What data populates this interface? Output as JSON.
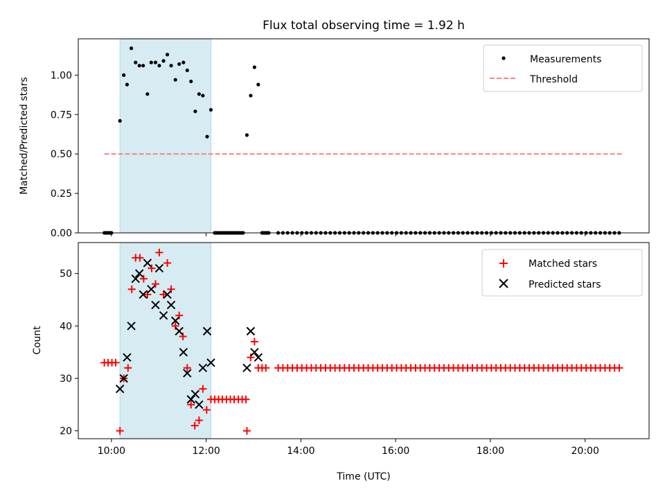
{
  "chart_data": {
    "type": "scatter",
    "title": "Flux total observing time = 1.92 h",
    "xlabel": "Time (UTC)",
    "x_unit": "hours",
    "xlim": [
      9.3,
      21.35
    ],
    "xticks": [
      10,
      12,
      14,
      16,
      18,
      20
    ],
    "xtick_labels": [
      "10:00",
      "12:00",
      "14:00",
      "16:00",
      "18:00",
      "20:00"
    ],
    "shaded_interval": {
      "start": 10.18,
      "end": 12.1,
      "color": "#add8e6"
    },
    "top": {
      "ylabel": "Matched/Predicted stars",
      "ylim": [
        0,
        1.23
      ],
      "yticks": [
        0,
        0.25,
        0.5,
        0.75,
        1.0
      ],
      "ytick_labels": [
        "0.00",
        "0.25",
        "0.50",
        "0.75",
        "1.00"
      ],
      "threshold": {
        "name": "Threshold",
        "value": 0.5,
        "x_start": 9.85,
        "x_end": 20.8,
        "color": "#ff8080"
      },
      "measurements": {
        "name": "Measurements",
        "color": "#000000",
        "points": [
          [
            10.18,
            0.71
          ],
          [
            10.26,
            1.0
          ],
          [
            10.33,
            0.94
          ],
          [
            10.42,
            1.17
          ],
          [
            10.51,
            1.08
          ],
          [
            10.59,
            1.06
          ],
          [
            10.67,
            1.06
          ],
          [
            10.76,
            0.88
          ],
          [
            10.84,
            1.08
          ],
          [
            10.93,
            1.08
          ],
          [
            11.01,
            1.06
          ],
          [
            11.1,
            1.09
          ],
          [
            11.18,
            1.13
          ],
          [
            11.26,
            1.06
          ],
          [
            11.35,
            0.97
          ],
          [
            11.43,
            1.07
          ],
          [
            11.52,
            1.08
          ],
          [
            11.6,
            1.03
          ],
          [
            11.68,
            0.96
          ],
          [
            11.77,
            0.77
          ],
          [
            11.85,
            0.88
          ],
          [
            11.93,
            0.87
          ],
          [
            12.02,
            0.61
          ],
          [
            12.1,
            0.78
          ],
          [
            12.86,
            0.62
          ],
          [
            12.94,
            0.87
          ],
          [
            13.02,
            1.05
          ],
          [
            13.1,
            0.94
          ]
        ]
      },
      "zero_segments": [
        [
          9.85,
          10.0,
          0.025
        ],
        [
          12.18,
          12.78,
          0.03
        ],
        [
          13.18,
          13.32,
          0.035
        ],
        [
          13.52,
          20.8,
          0.1
        ]
      ]
    },
    "bottom": {
      "ylabel": "Count",
      "ylim": [
        18.5,
        55.9
      ],
      "yticks": [
        20,
        30,
        40,
        50
      ],
      "ytick_labels": [
        "20",
        "30",
        "40",
        "50"
      ],
      "matched": {
        "name": "Matched stars",
        "color": "#ff0000",
        "points": [
          [
            9.85,
            33
          ],
          [
            9.93,
            33
          ],
          [
            10.01,
            33
          ],
          [
            10.09,
            33
          ],
          [
            10.18,
            20
          ],
          [
            10.26,
            30
          ],
          [
            10.35,
            32
          ],
          [
            10.43,
            47
          ],
          [
            10.51,
            53
          ],
          [
            10.6,
            53
          ],
          [
            10.68,
            49
          ],
          [
            10.76,
            46
          ],
          [
            10.85,
            51
          ],
          [
            10.93,
            48
          ],
          [
            11.01,
            54
          ],
          [
            11.1,
            46
          ],
          [
            11.18,
            52
          ],
          [
            11.26,
            47
          ],
          [
            11.35,
            40
          ],
          [
            11.43,
            42
          ],
          [
            11.51,
            38
          ],
          [
            11.6,
            32
          ],
          [
            11.68,
            25
          ],
          [
            11.76,
            21
          ],
          [
            11.85,
            22
          ],
          [
            11.93,
            28
          ],
          [
            12.01,
            24
          ],
          [
            12.1,
            26
          ],
          [
            12.18,
            26
          ],
          [
            12.26,
            26
          ],
          [
            12.34,
            26
          ],
          [
            12.43,
            26
          ],
          [
            12.51,
            26
          ],
          [
            12.59,
            26
          ],
          [
            12.68,
            26
          ],
          [
            12.76,
            26
          ],
          [
            12.84,
            26
          ],
          [
            12.86,
            20
          ],
          [
            12.94,
            34
          ],
          [
            13.02,
            37
          ],
          [
            13.1,
            32
          ],
          [
            13.18,
            32
          ],
          [
            13.26,
            32
          ]
        ],
        "constant_series": {
          "value": 32,
          "x_start": 13.52,
          "x_end": 20.8,
          "step": 0.1
        }
      },
      "predicted": {
        "name": "Predicted stars",
        "color": "#000000",
        "points": [
          [
            10.18,
            28
          ],
          [
            10.26,
            30
          ],
          [
            10.33,
            34
          ],
          [
            10.42,
            40
          ],
          [
            10.51,
            49
          ],
          [
            10.59,
            50
          ],
          [
            10.67,
            46
          ],
          [
            10.76,
            52
          ],
          [
            10.84,
            47
          ],
          [
            10.93,
            44
          ],
          [
            11.01,
            51
          ],
          [
            11.1,
            42
          ],
          [
            11.18,
            46
          ],
          [
            11.26,
            44
          ],
          [
            11.35,
            41
          ],
          [
            11.43,
            39
          ],
          [
            11.52,
            35
          ],
          [
            11.6,
            31
          ],
          [
            11.68,
            26
          ],
          [
            11.77,
            27
          ],
          [
            11.85,
            25
          ],
          [
            11.93,
            32
          ],
          [
            12.02,
            39
          ],
          [
            12.1,
            33
          ],
          [
            12.86,
            32
          ],
          [
            12.94,
            39
          ],
          [
            13.02,
            35
          ],
          [
            13.1,
            34
          ]
        ]
      }
    }
  }
}
